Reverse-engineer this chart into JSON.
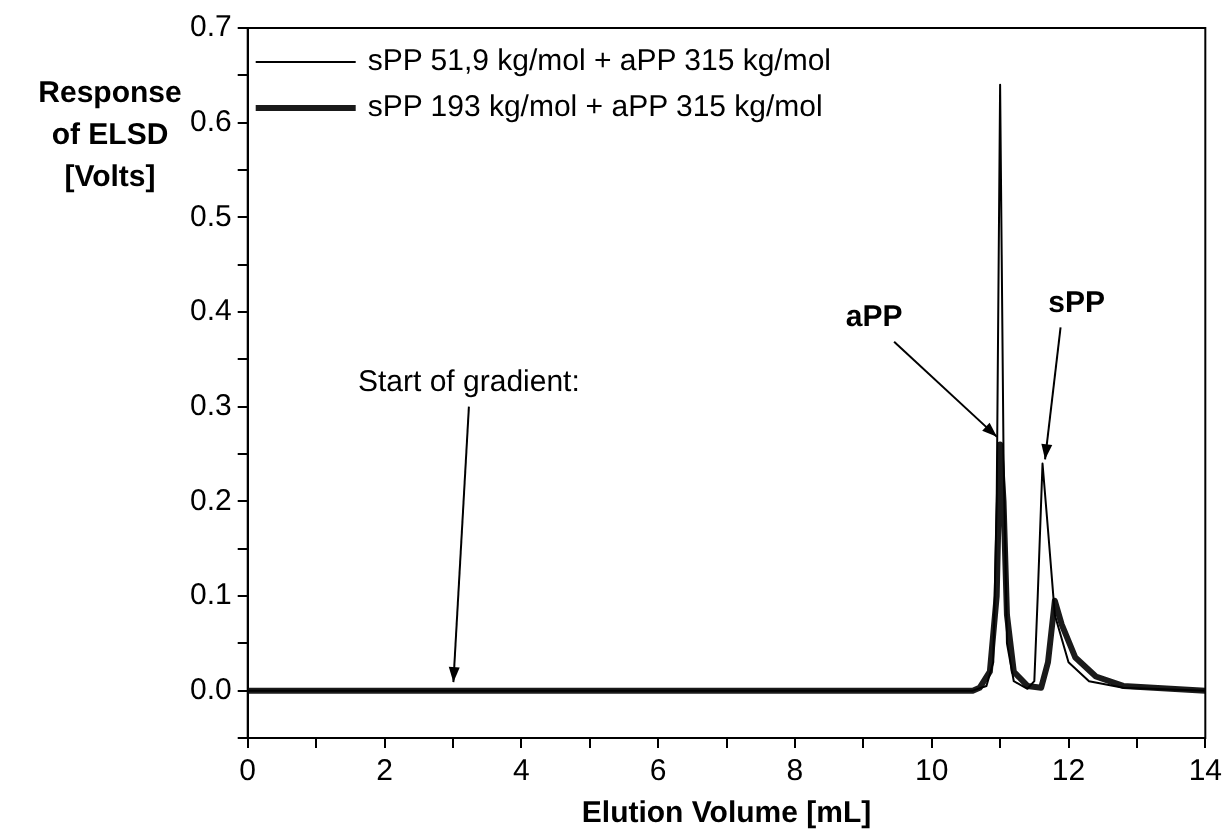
{
  "chart_data": {
    "type": "line",
    "xlabel": "Elution Volume [mL]",
    "ylabel": "Response\nof ELSD\n[Volts]",
    "xlim": [
      0,
      14
    ],
    "xticks": [
      0,
      {
        "value": 1,
        "label": null
      },
      2,
      {
        "value": 3,
        "label": null
      },
      4,
      {
        "value": 5,
        "label": null
      },
      6,
      {
        "value": 7,
        "label": null
      },
      8,
      {
        "value": 9,
        "label": null
      },
      10,
      {
        "value": 11,
        "label": null
      },
      12,
      {
        "value": 13,
        "label": null
      },
      14
    ],
    "ylim": [
      -0.05,
      0.7
    ],
    "yticks": [
      {
        "value": -0.05,
        "label": null
      },
      {
        "value": 0,
        "label": "0.0"
      },
      {
        "value": 0.05,
        "label": null
      },
      0.1,
      {
        "value": 0.15,
        "label": null
      },
      0.2,
      {
        "value": 0.25,
        "label": null
      },
      0.3,
      {
        "value": 0.35,
        "label": null
      },
      0.4,
      {
        "value": 0.45,
        "label": null
      },
      0.5,
      {
        "value": 0.55,
        "label": null
      },
      0.6,
      {
        "value": 0.65,
        "label": null
      },
      0.7
    ],
    "legend": "top left",
    "grid": false,
    "marker": "none",
    "line_style": "solid",
    "series": [
      {
        "name": "sPP 51,9 kg/mol + aPP 315 kg/mol",
        "color": "#000000",
        "x": [
          0,
          10.6,
          10.8,
          10.9,
          10.95,
          11.0,
          11.05,
          11.1,
          11.2,
          11.4,
          11.5,
          11.55,
          11.62,
          11.7,
          11.8,
          12.0,
          12.3,
          12.8,
          14
        ],
        "values": [
          0,
          0,
          0.005,
          0.03,
          0.2,
          0.64,
          0.25,
          0.05,
          0.01,
          0.002,
          0.01,
          0.1,
          0.24,
          0.17,
          0.08,
          0.03,
          0.01,
          0.003,
          0
        ]
      },
      {
        "name": "sPP 193 kg/mol + aPP 315 kg/mol",
        "color": "#1a1a1a",
        "x": [
          0,
          10.6,
          10.7,
          10.85,
          10.95,
          11.0,
          11.05,
          11.1,
          11.2,
          11.4,
          11.6,
          11.7,
          11.8,
          11.9,
          12.1,
          12.4,
          12.8,
          14
        ],
        "values": [
          0,
          0,
          0.003,
          0.02,
          0.1,
          0.26,
          0.2,
          0.08,
          0.02,
          0.005,
          0.003,
          0.03,
          0.095,
          0.07,
          0.035,
          0.015,
          0.005,
          0
        ]
      }
    ],
    "annotations": [
      {
        "text": "aPP",
        "x": 11.0,
        "y": 0.265
      },
      {
        "text": "sPP",
        "x": 11.65,
        "y": 0.24
      },
      {
        "text": "Start of gradient:",
        "x": 3,
        "y": 0
      }
    ]
  }
}
